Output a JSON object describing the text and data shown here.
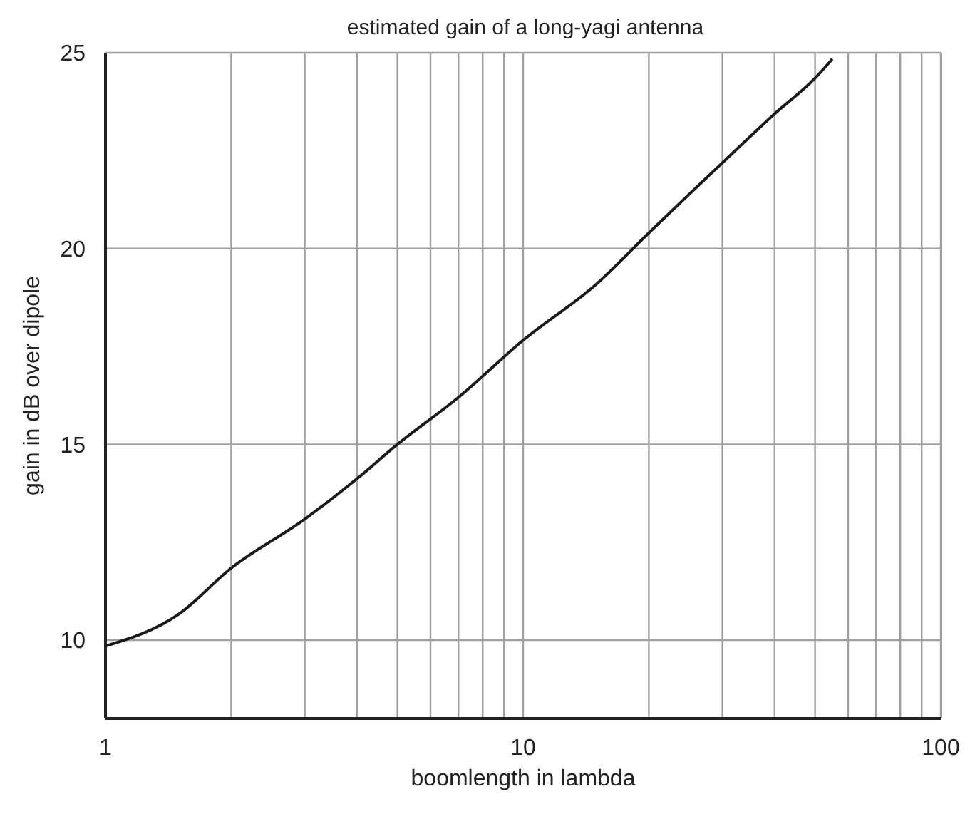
{
  "chart_data": {
    "type": "line",
    "title": "estimated gain of a long-yagi antenna",
    "xlabel": "boomlength in lambda",
    "ylabel": "gain in dB over dipole",
    "log": "x",
    "x": [
      1,
      1.5,
      2,
      3,
      4,
      5,
      7,
      10,
      15,
      20,
      30,
      40,
      50,
      55
    ],
    "series": [
      {
        "color": "#1a1a1a",
        "values": [
          9.85,
          10.67,
          11.84,
          13.09,
          14.12,
          15.0,
          16.2,
          17.66,
          19.1,
          20.4,
          22.19,
          23.44,
          24.35,
          24.84
        ]
      }
    ],
    "xlim": [
      1,
      100
    ],
    "xticks": [
      1,
      {
        "value": 2,
        "label": null
      },
      {
        "value": 3,
        "label": null
      },
      {
        "value": 4,
        "label": null
      },
      {
        "value": 5,
        "label": null
      },
      {
        "value": 6,
        "label": null
      },
      {
        "value": 7,
        "label": null
      },
      {
        "value": 8,
        "label": null
      },
      {
        "value": 9,
        "label": null
      },
      10,
      {
        "value": 20,
        "label": null
      },
      {
        "value": 30,
        "label": null
      },
      {
        "value": 40,
        "label": null
      },
      {
        "value": 50,
        "label": null
      },
      {
        "value": 60,
        "label": null
      },
      {
        "value": 70,
        "label": null
      },
      {
        "value": 80,
        "label": null
      },
      {
        "value": 90,
        "label": null
      },
      100
    ],
    "ylim": [
      8,
      25
    ],
    "yticks": [
      10,
      15,
      20,
      25
    ],
    "grid": true,
    "marker": "none",
    "line_style": "solid"
  }
}
